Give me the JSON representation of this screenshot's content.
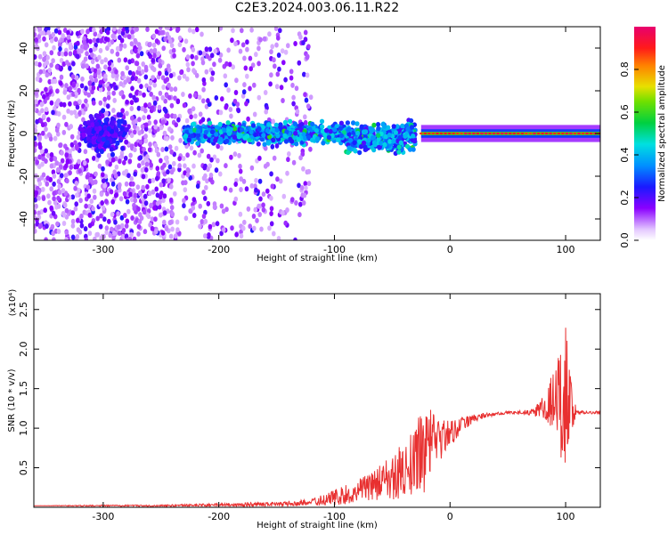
{
  "title": "C2E3.2024.003.06.11.R22",
  "colors": {
    "snr_line": "#e83030",
    "frame": "#000000",
    "background": "#ffffff"
  },
  "chart_data": [
    {
      "type": "heatmap",
      "xlabel": "Height of straight line (km)",
      "ylabel": "Frequency (Hz)",
      "xlim": [
        -360,
        130
      ],
      "ylim": [
        -50,
        50
      ],
      "x_ticks": [
        "-300",
        "-200",
        "-100",
        "0",
        "100"
      ],
      "y_ticks": [
        "-40",
        "-20",
        "0",
        "20",
        "40"
      ],
      "colorbar": {
        "label": "Normalized spectral amplitude",
        "range": [
          0,
          1
        ],
        "ticks": [
          "0.0",
          "0.2",
          "0.4",
          "0.6",
          "0.8"
        ],
        "colormap": "rainbow (white/violet to magenta-red)"
      },
      "signal": {
        "center_hz": 0,
        "noise_region_km": [
          -360,
          -130
        ],
        "scatter_band_km": [
          -230,
          -30
        ],
        "narrow_line_km": [
          -25,
          130
        ]
      }
    },
    {
      "type": "line",
      "xlabel": "Height of straight line (km)",
      "ylabel": "SNR (10 * v/v)",
      "y_scale_label": "(x10⁴)",
      "xlim": [
        -360,
        130
      ],
      "ylim": [
        0,
        2.7
      ],
      "x_ticks": [
        "-300",
        "-200",
        "-100",
        "0",
        "100"
      ],
      "y_ticks": [
        "0.5",
        "1.0",
        "1.5",
        "2.0",
        "2.5"
      ],
      "series": [
        {
          "x": [
            -360,
            -300,
            -250,
            -200,
            -150,
            -120,
            -100,
            -80,
            -60,
            -45,
            -30,
            -22,
            -20,
            -15,
            -10,
            0,
            10,
            20,
            30,
            40,
            50,
            60,
            70,
            75,
            80,
            85,
            90,
            95,
            98,
            100,
            105,
            110,
            120,
            130
          ],
          "y": [
            0.02,
            0.02,
            0.02,
            0.03,
            0.04,
            0.06,
            0.12,
            0.2,
            0.32,
            0.42,
            0.6,
            0.75,
            0.78,
            0.8,
            0.85,
            0.95,
            1.05,
            1.12,
            1.16,
            1.18,
            1.2,
            1.2,
            1.2,
            1.22,
            1.25,
            1.3,
            1.32,
            1.35,
            1.38,
            1.35,
            1.25,
            1.2,
            1.2,
            1.2
          ],
          "noise_amplitude": [
            0.0,
            0.01,
            0.01,
            0.02,
            0.03,
            0.04,
            0.1,
            0.15,
            0.22,
            0.32,
            0.45,
            0.6,
            0.65,
            0.4,
            0.3,
            0.2,
            0.1,
            0.05,
            0.03,
            0.02,
            0.02,
            0.02,
            0.04,
            0.08,
            0.15,
            0.3,
            0.45,
            0.6,
            1.3,
            1.0,
            0.3,
            0.03,
            0.02,
            0.02
          ]
        }
      ]
    }
  ]
}
